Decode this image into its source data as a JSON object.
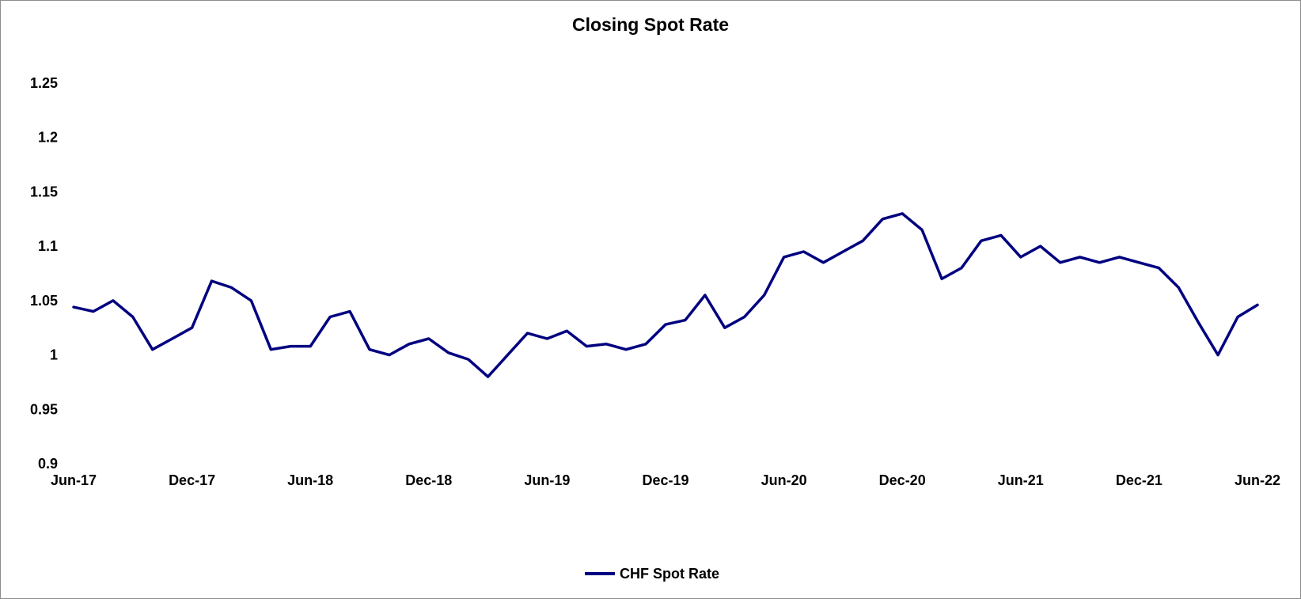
{
  "chart_data": {
    "type": "line",
    "title": "Closing Spot Rate",
    "xlabel": "",
    "ylabel": "",
    "ylim": [
      0.9,
      1.25
    ],
    "y_ticks": [
      "0.9",
      "0.95",
      "1",
      "1.05",
      "1.1",
      "1.15",
      "1.2",
      "1.25"
    ],
    "y_tick_values": [
      0.9,
      0.95,
      1.0,
      1.05,
      1.1,
      1.15,
      1.2,
      1.25
    ],
    "x_range": [
      "2017-06",
      "2022-06"
    ],
    "x_ticks": [
      {
        "label": "Jun-17",
        "date": "2017-06"
      },
      {
        "label": "Dec-17",
        "date": "2017-12"
      },
      {
        "label": "Jun-18",
        "date": "2018-06"
      },
      {
        "label": "Dec-18",
        "date": "2018-12"
      },
      {
        "label": "Jun-19",
        "date": "2019-06"
      },
      {
        "label": "Dec-19",
        "date": "2019-12"
      },
      {
        "label": "Jun-20",
        "date": "2020-06"
      },
      {
        "label": "Dec-20",
        "date": "2020-12"
      },
      {
        "label": "Jun-21",
        "date": "2021-06"
      },
      {
        "label": "Dec-21",
        "date": "2021-12"
      },
      {
        "label": "Jun-22",
        "date": "2022-06"
      }
    ],
    "grid": false,
    "legend_position": "bottom-center",
    "series": [
      {
        "name": "CHF Spot Rate",
        "color": "#000080",
        "x": [
          "2017-06",
          "2017-07",
          "2017-08",
          "2017-09",
          "2017-10",
          "2017-11",
          "2017-12",
          "2018-01",
          "2018-02",
          "2018-03",
          "2018-04",
          "2018-05",
          "2018-06",
          "2018-07",
          "2018-08",
          "2018-09",
          "2018-10",
          "2018-11",
          "2018-12",
          "2019-01",
          "2019-02",
          "2019-03",
          "2019-04",
          "2019-05",
          "2019-06",
          "2019-07",
          "2019-08",
          "2019-09",
          "2019-10",
          "2019-11",
          "2019-12",
          "2020-01",
          "2020-02",
          "2020-03",
          "2020-04",
          "2020-05",
          "2020-06",
          "2020-07",
          "2020-08",
          "2020-09",
          "2020-10",
          "2020-11",
          "2020-12",
          "2021-01",
          "2021-02",
          "2021-03",
          "2021-04",
          "2021-05",
          "2021-06",
          "2021-07",
          "2021-08",
          "2021-09",
          "2021-10",
          "2021-11",
          "2021-12",
          "2022-01",
          "2022-02",
          "2022-03",
          "2022-04",
          "2022-05",
          "2022-06"
        ],
        "values": [
          1.044,
          1.04,
          1.05,
          1.035,
          1.005,
          1.015,
          1.025,
          1.068,
          1.062,
          1.05,
          1.005,
          1.008,
          1.008,
          1.035,
          1.04,
          1.005,
          1.0,
          1.01,
          1.015,
          1.002,
          0.996,
          0.98,
          1.0,
          1.02,
          1.015,
          1.022,
          1.008,
          1.01,
          1.005,
          1.01,
          1.028,
          1.032,
          1.055,
          1.025,
          1.035,
          1.055,
          1.09,
          1.095,
          1.085,
          1.095,
          1.105,
          1.125,
          1.13,
          1.115,
          1.07,
          1.08,
          1.105,
          1.11,
          1.09,
          1.1,
          1.085,
          1.09,
          1.085,
          1.09,
          1.085,
          1.08,
          1.062,
          1.03,
          1.0,
          1.035,
          1.046
        ]
      }
    ]
  }
}
